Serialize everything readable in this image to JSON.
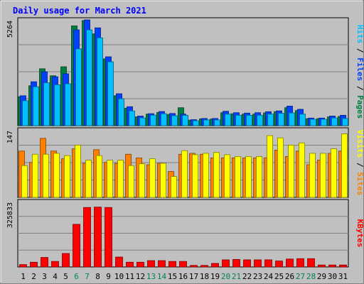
{
  "colors": {
    "frame": "#c0c0c0",
    "title": "#0000ff",
    "pages": "#008040",
    "files": "#0040ff",
    "hits": "#00c0ff",
    "visits": "#ffff00",
    "sites": "#ff8000",
    "kbytes": "#ff0000",
    "weekend_day": "#00805c"
  },
  "chart_data": {
    "type": "bar",
    "title": "Daily usage for March 2021",
    "days": [
      "1",
      "2",
      "3",
      "4",
      "5",
      "6",
      "7",
      "8",
      "9",
      "10",
      "11",
      "12",
      "13",
      "14",
      "15",
      "16",
      "17",
      "18",
      "19",
      "20",
      "21",
      "22",
      "23",
      "24",
      "25",
      "26",
      "27",
      "28",
      "29",
      "30",
      "31"
    ],
    "weekend_days": [
      "6",
      "7",
      "13",
      "14",
      "20",
      "21",
      "27",
      "28"
    ],
    "panels": [
      {
        "id": "hits",
        "ylabel": "Pages / Files / Hits",
        "label_parts": [
          "Pages",
          "Files",
          "Hits"
        ],
        "max_label": "5264",
        "ylim": [
          0,
          5264
        ],
        "series": [
          {
            "name": "Hits",
            "values": [
              1250,
              1950,
              2150,
              2050,
              2100,
              3850,
              4800,
              4400,
              3200,
              1350,
              740,
              390,
              530,
              600,
              500,
              520,
              250,
              290,
              290,
              580,
              520,
              520,
              520,
              580,
              620,
              640,
              580,
              320,
              320,
              390,
              360
            ]
          },
          {
            "name": "Files",
            "values": [
              1500,
              2200,
              2700,
              2450,
              2600,
              4800,
              5300,
              4900,
              3450,
              1600,
              950,
              480,
              600,
              710,
              610,
              580,
              300,
              360,
              360,
              720,
              650,
              630,
              650,
              700,
              740,
              980,
              820,
              380,
              380,
              480,
              520
            ]
          },
          {
            "name": "Pages",
            "values": [
              1450,
              2000,
              2850,
              2500,
              2950,
              5000,
              5264,
              4600,
              3350,
              1500,
              880,
              440,
              580,
              660,
              560,
              900,
              280,
              340,
              330,
              650,
              600,
              580,
              580,
              640,
              700,
              900,
              760,
              350,
              350,
              440,
              460
            ]
          }
        ]
      },
      {
        "id": "visits",
        "ylabel": "Sites / Visits",
        "label_parts": [
          "Sites",
          "Visits"
        ],
        "max_label": "147",
        "ylim": [
          0,
          147
        ],
        "series": [
          {
            "name": "Visits",
            "values": [
              70,
              95,
              95,
              97,
              92,
              115,
              82,
              92,
              82,
              82,
              70,
              74,
              85,
              75,
              46,
              103,
              94,
              97,
              99,
              94,
              90,
              90,
              90,
              136,
              131,
              115,
              120,
              97,
              97,
              107,
              140
            ]
          },
          {
            "name": "Sites",
            "values": [
              102,
              77,
              130,
              102,
              85,
              107,
              75,
              105,
              77,
              75,
              95,
              87,
              72,
              75,
              57,
              95,
              97,
              95,
              87,
              87,
              87,
              87,
              87,
              87,
              104,
              90,
              102,
              72,
              82,
              97,
              102
            ]
          }
        ]
      },
      {
        "id": "kbytes",
        "ylabel": "KBytes",
        "label_parts": [
          "KBytes"
        ],
        "max_label": "325833",
        "ylim": [
          0,
          325833
        ],
        "series": [
          {
            "name": "KBytes",
            "values": [
              12000,
              24000,
              48000,
              28000,
              68000,
              215000,
              300000,
              302000,
              300000,
              50000,
              24000,
              24000,
              32000,
              32000,
              28000,
              28000,
              8000,
              8000,
              18000,
              36000,
              38000,
              36000,
              36000,
              36000,
              30000,
              40000,
              42000,
              42000,
              10000,
              10000,
              10000
            ]
          }
        ]
      }
    ]
  }
}
